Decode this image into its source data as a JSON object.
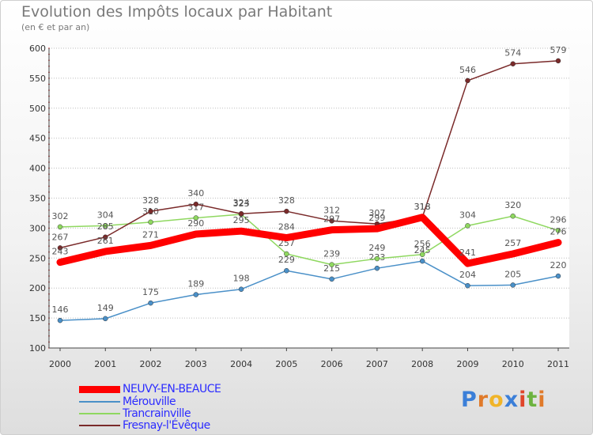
{
  "header": {
    "title": "Evolution des Impôts locaux par Habitant",
    "subtitle": "(en € et par an)"
  },
  "logo": {
    "letters": [
      "P",
      "r",
      "o",
      "x",
      "i",
      "t",
      "i"
    ],
    "colors": [
      "#3b7fd8",
      "#e07a2a",
      "#f0b429",
      "#3b7fd8",
      "#e0452a",
      "#6cb33f",
      "#e07a2a"
    ]
  },
  "chart_data": {
    "type": "line",
    "title": "Evolution des Impôts locaux par Habitant",
    "subtitle": "(en € et par an)",
    "xlabel": "",
    "ylabel": "",
    "x": [
      "2000",
      "2001",
      "2002",
      "2003",
      "2004",
      "2005",
      "2006",
      "2007",
      "2008",
      "2009",
      "2010",
      "2011"
    ],
    "ylim": [
      100,
      600
    ],
    "yticks": [
      "100",
      "150",
      "200",
      "250",
      "300",
      "350",
      "400",
      "450",
      "500",
      "550",
      "600"
    ],
    "grid": "horizontal",
    "legend_position": "bottom-left",
    "series": [
      {
        "name": "Mérouville",
        "color": "#4a90c8",
        "thick": false,
        "values": [
          146,
          149,
          175,
          189,
          198,
          229,
          215,
          233,
          245,
          204,
          205,
          220
        ],
        "labels": [
          "146",
          "149",
          "175",
          "189",
          "198",
          "229",
          "215",
          "233",
          "245",
          "204",
          "205",
          "220"
        ]
      },
      {
        "name": "Trancrainville",
        "color": "#8fd860",
        "thick": false,
        "values": [
          302,
          304,
          310,
          317,
          323,
          257,
          239,
          249,
          256,
          304,
          320,
          296
        ],
        "labels": [
          "302",
          "304",
          "310",
          "317",
          "323",
          "257",
          "239",
          "249",
          "256",
          "304",
          "320",
          "296"
        ]
      },
      {
        "name": "Fresnay-l'Évêque",
        "color": "#7a2a2a",
        "thick": false,
        "values": [
          267,
          285,
          328,
          340,
          324,
          328,
          312,
          307,
          318,
          546,
          574,
          579
        ],
        "labels": [
          "267",
          "285",
          "328",
          "340",
          "324",
          "328",
          "312",
          "307",
          "318",
          "546",
          "574",
          "579"
        ]
      },
      {
        "name": "NEUVY-EN-BEAUCE",
        "color": "#ff0000",
        "thick": true,
        "values": [
          243,
          261,
          271,
          290,
          295,
          284,
          297,
          299,
          318,
          241,
          257,
          276
        ],
        "labels": [
          "243",
          "261",
          "271",
          "290",
          "295",
          "284",
          "297",
          "299",
          "318",
          "241",
          "257",
          "276"
        ]
      }
    ],
    "legend": [
      {
        "name": "NEUVY-EN-BEAUCE",
        "color": "#ff0000",
        "thick": true
      },
      {
        "name": "Mérouville",
        "color": "#4a90c8",
        "thick": false
      },
      {
        "name": "Trancrainville",
        "color": "#8fd860",
        "thick": false
      },
      {
        "name": "Fresnay-l'Évêque",
        "color": "#7a2a2a",
        "thick": false
      }
    ]
  }
}
